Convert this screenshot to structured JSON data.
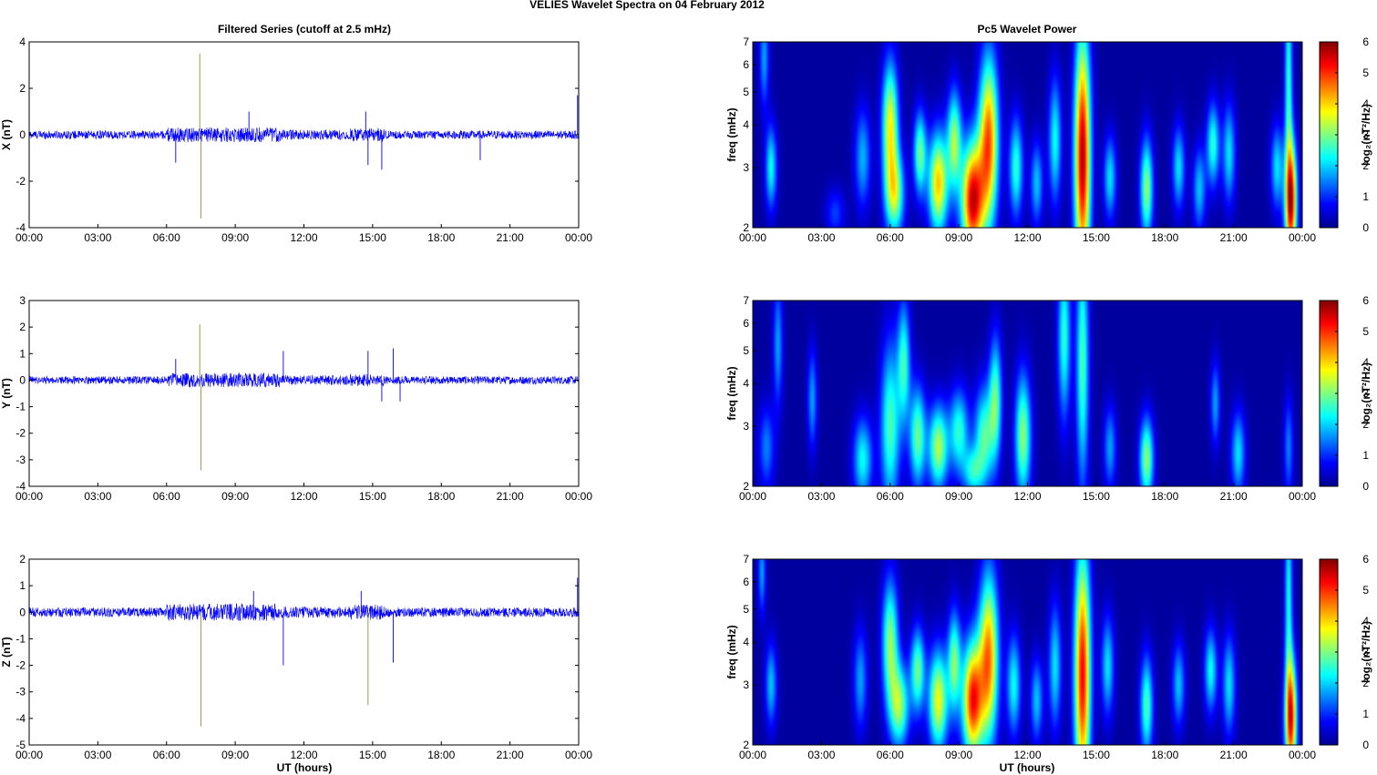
{
  "figure": {
    "suptitle": "VELIES Wavelet Spectra on 04 February  2012",
    "left_title": "Filtered Series (cutoff at 2.5 mHz)",
    "right_title": "Pc5 Wavelet Power",
    "xlabel": "UT (hours)"
  },
  "chart_data": [
    {
      "type": "line",
      "name": "x-series",
      "ylabel": "X (nT)",
      "xlim": [
        0,
        24
      ],
      "ylim": [
        -4,
        4
      ],
      "xticks": [
        "00:00",
        "03:00",
        "06:00",
        "09:00",
        "12:00",
        "15:00",
        "18:00",
        "21:00",
        "00:00"
      ],
      "yticks": [
        "4",
        "2",
        "0",
        "-2",
        "-4"
      ],
      "yticks_values": [
        4,
        2,
        0,
        -2,
        -4
      ],
      "noise_amplitude": 0.18,
      "color": "#0000ff",
      "events": [
        {
          "t": 6.4,
          "y": -1.2
        },
        {
          "t": 7.45,
          "y": 3.5
        },
        {
          "t": 7.5,
          "y": -3.6
        },
        {
          "t": 9.6,
          "y": 1.0
        },
        {
          "t": 14.7,
          "y": 1.0
        },
        {
          "t": 14.8,
          "y": -1.3
        },
        {
          "t": 15.4,
          "y": -1.5
        },
        {
          "t": 19.7,
          "y": -1.1
        },
        {
          "t": 23.95,
          "y": 1.7
        }
      ]
    },
    {
      "type": "line",
      "name": "y-series",
      "ylabel": "Y (nT)",
      "xlim": [
        0,
        24
      ],
      "ylim": [
        -4,
        3
      ],
      "xticks": [
        "00:00",
        "03:00",
        "06:00",
        "09:00",
        "12:00",
        "15:00",
        "18:00",
        "21:00",
        "00:00"
      ],
      "yticks": [
        "3",
        "2",
        "1",
        "0",
        "-1",
        "-2",
        "-3",
        "-4"
      ],
      "yticks_values": [
        3,
        2,
        1,
        0,
        -1,
        -2,
        -3,
        -4
      ],
      "noise_amplitude": 0.15,
      "color": "#0000ff",
      "events": [
        {
          "t": 6.4,
          "y": 0.8
        },
        {
          "t": 7.45,
          "y": 2.1
        },
        {
          "t": 7.5,
          "y": -3.4
        },
        {
          "t": 11.1,
          "y": 1.1
        },
        {
          "t": 14.8,
          "y": 1.1
        },
        {
          "t": 15.4,
          "y": -0.8
        },
        {
          "t": 15.9,
          "y": 1.2
        },
        {
          "t": 16.2,
          "y": -0.8
        }
      ]
    },
    {
      "type": "line",
      "name": "z-series",
      "ylabel": "Z (nT)",
      "xlim": [
        0,
        24
      ],
      "ylim": [
        -5,
        2
      ],
      "xticks": [
        "00:00",
        "03:00",
        "06:00",
        "09:00",
        "12:00",
        "15:00",
        "18:00",
        "21:00",
        "00:00"
      ],
      "yticks": [
        "2",
        "1",
        "0",
        "-1",
        "-2",
        "-3",
        "-4",
        "-5"
      ],
      "yticks_values": [
        2,
        1,
        0,
        -1,
        -2,
        -3,
        -4,
        -5
      ],
      "noise_amplitude": 0.18,
      "color": "#0000ff",
      "events": [
        {
          "t": 7.5,
          "y": -4.3
        },
        {
          "t": 9.8,
          "y": 0.8
        },
        {
          "t": 11.1,
          "y": -2.0
        },
        {
          "t": 14.5,
          "y": 0.8
        },
        {
          "t": 14.8,
          "y": -3.5
        },
        {
          "t": 15.9,
          "y": -1.9
        },
        {
          "t": 23.95,
          "y": 1.3
        }
      ]
    },
    {
      "type": "heatmap",
      "name": "x-wavelet",
      "ylabel": "freq (mHz)",
      "colorbar_label": "log₂(nT²/Hz)",
      "colorbar_ticks": [
        "6",
        "5",
        "4",
        "3",
        "2",
        "1",
        "0"
      ],
      "colorbar_values": [
        6,
        5,
        4,
        3,
        2,
        1,
        0
      ],
      "xlim": [
        0,
        24
      ],
      "ylim": [
        2,
        7
      ],
      "log_y": true,
      "xticks": [
        "00:00",
        "03:00",
        "06:00",
        "09:00",
        "12:00",
        "15:00",
        "18:00",
        "21:00",
        "00:00"
      ],
      "yticks": [
        "7",
        "6",
        "5",
        "4",
        "3",
        "2"
      ],
      "yticks_values": [
        7,
        6,
        5,
        4,
        3,
        2
      ],
      "colormap": [
        "#00008f",
        "#0000ff",
        "#0080ff",
        "#00ffff",
        "#80ff80",
        "#ffff00",
        "#ff8000",
        "#ff0000",
        "#800000"
      ],
      "background_value": 0.1,
      "blobs": [
        {
          "t": 0.8,
          "f": 3.0,
          "w": 0.18,
          "h": 0.1,
          "v": 2.2
        },
        {
          "t": 0.5,
          "f": 6.3,
          "w": 0.15,
          "h": 0.12,
          "v": 1.6
        },
        {
          "t": 3.6,
          "f": 2.2,
          "w": 0.3,
          "h": 0.06,
          "v": 1.0
        },
        {
          "t": 4.8,
          "f": 3.2,
          "w": 0.25,
          "h": 0.12,
          "v": 1.7
        },
        {
          "t": 6.0,
          "f": 4.0,
          "w": 0.25,
          "h": 0.15,
          "v": 3.6
        },
        {
          "t": 6.2,
          "f": 2.5,
          "w": 0.3,
          "h": 0.1,
          "v": 3.0
        },
        {
          "t": 7.3,
          "f": 3.3,
          "w": 0.2,
          "h": 0.1,
          "v": 2.8
        },
        {
          "t": 8.1,
          "f": 2.7,
          "w": 0.3,
          "h": 0.12,
          "v": 4.0
        },
        {
          "t": 8.8,
          "f": 3.6,
          "w": 0.22,
          "h": 0.12,
          "v": 3.0
        },
        {
          "t": 9.6,
          "f": 2.4,
          "w": 0.35,
          "h": 0.14,
          "v": 5.4
        },
        {
          "t": 10.3,
          "f": 3.6,
          "w": 0.3,
          "h": 0.2,
          "v": 4.6
        },
        {
          "t": 11.5,
          "f": 3.0,
          "w": 0.22,
          "h": 0.12,
          "v": 2.4
        },
        {
          "t": 12.4,
          "f": 2.7,
          "w": 0.2,
          "h": 0.1,
          "v": 1.8
        },
        {
          "t": 13.2,
          "f": 3.6,
          "w": 0.2,
          "h": 0.15,
          "v": 2.2
        },
        {
          "t": 14.4,
          "f": 3.2,
          "w": 0.25,
          "h": 0.3,
          "v": 5.6
        },
        {
          "t": 15.6,
          "f": 2.8,
          "w": 0.2,
          "h": 0.1,
          "v": 2.0
        },
        {
          "t": 17.2,
          "f": 2.6,
          "w": 0.2,
          "h": 0.12,
          "v": 3.0
        },
        {
          "t": 18.6,
          "f": 3.0,
          "w": 0.2,
          "h": 0.1,
          "v": 2.0
        },
        {
          "t": 19.5,
          "f": 2.6,
          "w": 0.2,
          "h": 0.1,
          "v": 1.8
        },
        {
          "t": 20.1,
          "f": 3.5,
          "w": 0.2,
          "h": 0.1,
          "v": 2.4
        },
        {
          "t": 20.8,
          "f": 3.3,
          "w": 0.2,
          "h": 0.12,
          "v": 2.0
        },
        {
          "t": 22.9,
          "f": 3.0,
          "w": 0.2,
          "h": 0.1,
          "v": 2.0
        },
        {
          "t": 23.5,
          "f": 2.4,
          "w": 0.18,
          "h": 0.14,
          "v": 5.6
        },
        {
          "t": 23.4,
          "f": 5.5,
          "w": 0.12,
          "h": 0.25,
          "v": 2.4
        }
      ]
    },
    {
      "type": "heatmap",
      "name": "y-wavelet",
      "ylabel": "freq (mHz)",
      "colorbar_label": "log₂(nT²/Hz)",
      "colorbar_ticks": [
        "6",
        "5",
        "4",
        "3",
        "2",
        "1",
        "0"
      ],
      "colorbar_values": [
        6,
        5,
        4,
        3,
        2,
        1,
        0
      ],
      "xlim": [
        0,
        24
      ],
      "ylim": [
        2,
        7
      ],
      "log_y": true,
      "xticks": [
        "00:00",
        "03:00",
        "06:00",
        "09:00",
        "12:00",
        "15:00",
        "18:00",
        "21:00",
        "00:00"
      ],
      "yticks": [
        "7",
        "6",
        "5",
        "4",
        "3",
        "2"
      ],
      "yticks_values": [
        7,
        6,
        5,
        4,
        3,
        2
      ],
      "colormap": [
        "#00008f",
        "#0000ff",
        "#0080ff",
        "#00ffff",
        "#80ff80",
        "#ffff00",
        "#ff8000",
        "#ff0000",
        "#800000"
      ],
      "background_value": 0.1,
      "blobs": [
        {
          "t": 0.6,
          "f": 2.6,
          "w": 0.25,
          "h": 0.1,
          "v": 1.4
        },
        {
          "t": 1.1,
          "f": 5.2,
          "w": 0.15,
          "h": 0.15,
          "v": 1.6
        },
        {
          "t": 2.6,
          "f": 3.6,
          "w": 0.15,
          "h": 0.12,
          "v": 1.6
        },
        {
          "t": 4.8,
          "f": 2.4,
          "w": 0.3,
          "h": 0.1,
          "v": 2.2
        },
        {
          "t": 6.0,
          "f": 3.0,
          "w": 0.3,
          "h": 0.2,
          "v": 2.6
        },
        {
          "t": 6.6,
          "f": 4.6,
          "w": 0.2,
          "h": 0.15,
          "v": 2.4
        },
        {
          "t": 7.2,
          "f": 2.8,
          "w": 0.25,
          "h": 0.12,
          "v": 2.8
        },
        {
          "t": 8.1,
          "f": 2.6,
          "w": 0.3,
          "h": 0.1,
          "v": 3.2
        },
        {
          "t": 9.0,
          "f": 2.9,
          "w": 0.3,
          "h": 0.1,
          "v": 2.4
        },
        {
          "t": 9.6,
          "f": 2.2,
          "w": 0.3,
          "h": 0.06,
          "v": 2.0
        },
        {
          "t": 10.1,
          "f": 2.8,
          "w": 0.3,
          "h": 0.12,
          "v": 2.6
        },
        {
          "t": 10.6,
          "f": 3.6,
          "w": 0.2,
          "h": 0.15,
          "v": 2.6
        },
        {
          "t": 11.8,
          "f": 2.8,
          "w": 0.25,
          "h": 0.15,
          "v": 3.0
        },
        {
          "t": 13.6,
          "f": 5.5,
          "w": 0.2,
          "h": 0.2,
          "v": 2.4
        },
        {
          "t": 14.4,
          "f": 4.6,
          "w": 0.2,
          "h": 0.3,
          "v": 2.6
        },
        {
          "t": 15.6,
          "f": 2.6,
          "w": 0.2,
          "h": 0.1,
          "v": 1.6
        },
        {
          "t": 17.2,
          "f": 2.4,
          "w": 0.22,
          "h": 0.1,
          "v": 3.0
        },
        {
          "t": 20.2,
          "f": 3.5,
          "w": 0.15,
          "h": 0.1,
          "v": 1.6
        },
        {
          "t": 21.2,
          "f": 2.5,
          "w": 0.22,
          "h": 0.1,
          "v": 2.0
        },
        {
          "t": 23.4,
          "f": 2.6,
          "w": 0.15,
          "h": 0.12,
          "v": 1.4
        }
      ]
    },
    {
      "type": "heatmap",
      "name": "z-wavelet",
      "ylabel": "freq (mHz)",
      "colorbar_label": "log₂(nT²/Hz)",
      "colorbar_ticks": [
        "6",
        "5",
        "4",
        "3",
        "2",
        "1",
        "0"
      ],
      "colorbar_values": [
        6,
        5,
        4,
        3,
        2,
        1,
        0
      ],
      "xlim": [
        0,
        24
      ],
      "ylim": [
        2,
        7
      ],
      "log_y": true,
      "xticks": [
        "00:00",
        "03:00",
        "06:00",
        "09:00",
        "12:00",
        "15:00",
        "18:00",
        "21:00",
        "00:00"
      ],
      "yticks": [
        "7",
        "6",
        "5",
        "4",
        "3",
        "2"
      ],
      "yticks_values": [
        7,
        6,
        5,
        4,
        3,
        2
      ],
      "colormap": [
        "#00008f",
        "#0000ff",
        "#0080ff",
        "#00ffff",
        "#80ff80",
        "#ffff00",
        "#ff8000",
        "#ff0000",
        "#800000"
      ],
      "background_value": 0.1,
      "blobs": [
        {
          "t": 0.8,
          "f": 3.0,
          "w": 0.18,
          "h": 0.1,
          "v": 1.8
        },
        {
          "t": 0.4,
          "f": 6.4,
          "w": 0.12,
          "h": 0.1,
          "v": 1.6
        },
        {
          "t": 4.7,
          "f": 3.1,
          "w": 0.22,
          "h": 0.12,
          "v": 1.6
        },
        {
          "t": 6.0,
          "f": 4.0,
          "w": 0.25,
          "h": 0.15,
          "v": 3.0
        },
        {
          "t": 6.4,
          "f": 2.6,
          "w": 0.3,
          "h": 0.1,
          "v": 3.0
        },
        {
          "t": 7.2,
          "f": 3.3,
          "w": 0.22,
          "h": 0.1,
          "v": 2.8
        },
        {
          "t": 8.1,
          "f": 2.7,
          "w": 0.3,
          "h": 0.12,
          "v": 3.6
        },
        {
          "t": 8.8,
          "f": 3.5,
          "w": 0.2,
          "h": 0.12,
          "v": 2.8
        },
        {
          "t": 9.6,
          "f": 2.7,
          "w": 0.32,
          "h": 0.14,
          "v": 5.0
        },
        {
          "t": 10.3,
          "f": 3.6,
          "w": 0.3,
          "h": 0.2,
          "v": 4.4
        },
        {
          "t": 11.4,
          "f": 3.0,
          "w": 0.22,
          "h": 0.12,
          "v": 2.2
        },
        {
          "t": 12.4,
          "f": 2.7,
          "w": 0.2,
          "h": 0.1,
          "v": 1.8
        },
        {
          "t": 13.2,
          "f": 3.4,
          "w": 0.2,
          "h": 0.15,
          "v": 2.0
        },
        {
          "t": 14.4,
          "f": 3.2,
          "w": 0.25,
          "h": 0.3,
          "v": 5.2
        },
        {
          "t": 15.5,
          "f": 3.4,
          "w": 0.2,
          "h": 0.12,
          "v": 2.0
        },
        {
          "t": 17.2,
          "f": 2.6,
          "w": 0.2,
          "h": 0.12,
          "v": 2.6
        },
        {
          "t": 18.6,
          "f": 3.0,
          "w": 0.2,
          "h": 0.1,
          "v": 1.8
        },
        {
          "t": 20.0,
          "f": 3.3,
          "w": 0.2,
          "h": 0.1,
          "v": 2.2
        },
        {
          "t": 20.8,
          "f": 3.0,
          "w": 0.2,
          "h": 0.12,
          "v": 2.0
        },
        {
          "t": 23.5,
          "f": 2.4,
          "w": 0.18,
          "h": 0.14,
          "v": 5.2
        },
        {
          "t": 23.4,
          "f": 5.5,
          "w": 0.12,
          "h": 0.25,
          "v": 2.2
        }
      ]
    }
  ]
}
